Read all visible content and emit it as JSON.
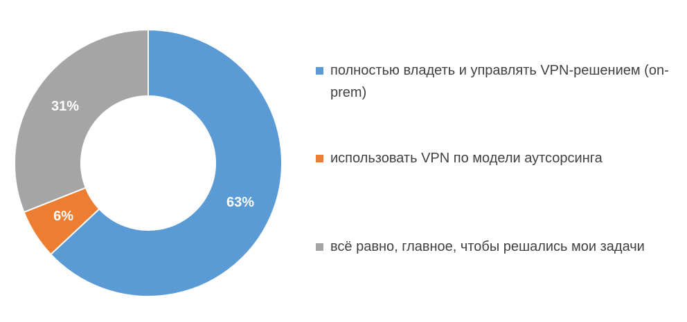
{
  "chart_data": {
    "type": "doughnut",
    "categories": [
      "полностью владеть и управлять VPN-решением (on-prem)",
      "использовать VPN по модели аутсорсинга",
      "всё равно, главное, чтобы решались мои задачи"
    ],
    "values": [
      63,
      6,
      31
    ],
    "value_labels": [
      "63%",
      "6%",
      "31%"
    ],
    "colors": [
      "#5b9bd5",
      "#ed7d31",
      "#a5a5a5"
    ],
    "legend": "right"
  }
}
